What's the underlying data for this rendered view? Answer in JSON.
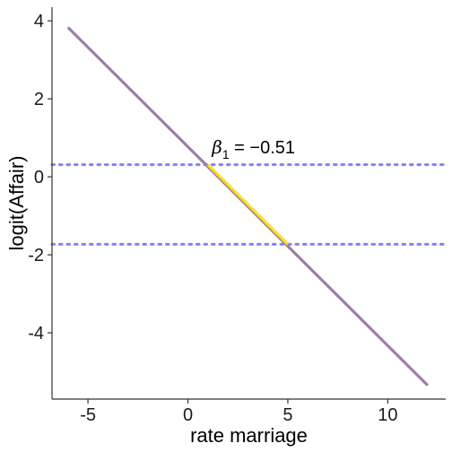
{
  "chart_data": {
    "type": "line",
    "xlabel": "rate marriage",
    "ylabel": "logit(Affair)",
    "xlim": [
      -6.8,
      12.9
    ],
    "ylim": [
      -5.7,
      4.35
    ],
    "x_ticks": [
      -5,
      0,
      5,
      10
    ],
    "y_ticks": [
      4,
      2,
      0,
      -2,
      -4
    ],
    "x_tick_labels": [
      "-5",
      "0",
      "5",
      "10"
    ],
    "y_tick_labels": [
      "4",
      "2",
      "0",
      "-2",
      "-4"
    ],
    "grid": false,
    "series": [
      {
        "color": "#9b7fa8",
        "x": [
          -6,
          12
        ],
        "y": [
          3.83,
          -5.35
        ]
      },
      {
        "color": "#f9e11e",
        "x": [
          1,
          5
        ],
        "y": [
          0.31,
          -1.73
        ]
      }
    ],
    "reference_lines": [
      {
        "orientation": "horizontal",
        "y": 0.31,
        "style": "dotted",
        "color": "#8080ff"
      },
      {
        "orientation": "horizontal",
        "y": -1.73,
        "style": "dotted",
        "color": "#8080ff"
      }
    ],
    "annotation": {
      "symbol": "β",
      "subscript": "1",
      "text": " = −0.51",
      "x": 1.2,
      "y": 0.6
    }
  }
}
